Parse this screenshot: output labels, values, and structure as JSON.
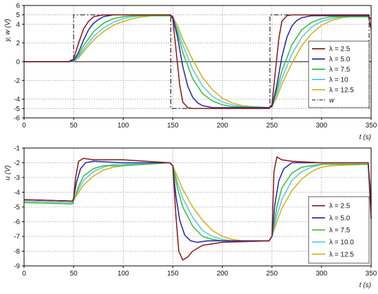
{
  "chart_data": [
    {
      "type": "line",
      "ylabel": "y, w (V)",
      "xlabel": "t (s)",
      "xlim": [
        0,
        350
      ],
      "ylim": [
        -6,
        6
      ],
      "xticks": [
        "0",
        "50",
        "100",
        "150",
        "200",
        "250",
        "300",
        "350"
      ],
      "yticks": [
        "-6",
        "-5",
        "-4",
        "-2",
        "0",
        "2",
        "4",
        "5",
        "6"
      ],
      "grid": true,
      "legend_position": "right",
      "reference": {
        "name": "w",
        "style": "dash-dot",
        "color": "#222222",
        "x": [
          0,
          50,
          50,
          148,
          148,
          248,
          248,
          348,
          348
        ],
        "y": [
          0,
          0,
          5,
          5,
          -5,
          -5,
          5,
          5,
          -5
        ]
      },
      "series": [
        {
          "name": "λ = 2.5",
          "color": "#8B2020",
          "x": [
            0,
            45,
            50,
            55,
            60,
            65,
            70,
            80,
            100,
            147,
            150,
            153,
            157,
            160,
            165,
            170,
            200,
            247,
            250,
            253,
            257,
            260,
            265,
            270,
            300,
            347,
            350
          ],
          "y": [
            0,
            0,
            0.3,
            2.0,
            3.5,
            4.3,
            4.8,
            5.0,
            5.0,
            5.0,
            4.6,
            1.5,
            -2.5,
            -4.3,
            -4.9,
            -5.0,
            -5.0,
            -5.0,
            -4.6,
            -1.5,
            2.5,
            4.3,
            4.9,
            5.0,
            5.0,
            5.0,
            3.5
          ]
        },
        {
          "name": "λ = 5.0",
          "color": "#2B2BA8",
          "x": [
            0,
            45,
            50,
            55,
            60,
            65,
            70,
            75,
            80,
            90,
            147,
            150,
            155,
            160,
            165,
            170,
            175,
            180,
            190,
            247,
            250,
            255,
            260,
            265,
            270,
            275,
            280,
            290,
            347,
            350
          ],
          "y": [
            0,
            0,
            0.1,
            1.0,
            2.3,
            3.4,
            4.1,
            4.5,
            4.8,
            5.0,
            5.0,
            4.8,
            2.5,
            -0.5,
            -2.6,
            -3.8,
            -4.4,
            -4.7,
            -4.9,
            -4.9,
            -4.8,
            -2.5,
            0.5,
            2.6,
            3.8,
            4.4,
            4.7,
            4.9,
            4.9,
            4.5
          ]
        },
        {
          "name": "λ = 7.5",
          "color": "#3DBF3D",
          "x": [
            0,
            45,
            50,
            55,
            60,
            70,
            80,
            90,
            100,
            110,
            147,
            150,
            155,
            160,
            170,
            180,
            190,
            200,
            210,
            247,
            250,
            255,
            260,
            270,
            280,
            290,
            300,
            310,
            347,
            350
          ],
          "y": [
            0,
            0,
            0.1,
            0.7,
            1.7,
            3.2,
            4.1,
            4.6,
            4.8,
            4.9,
            4.9,
            4.8,
            3.0,
            1.0,
            -1.8,
            -3.4,
            -4.2,
            -4.6,
            -4.8,
            -4.9,
            -4.8,
            -3.0,
            -1.0,
            1.8,
            3.4,
            4.2,
            4.6,
            4.8,
            4.8,
            4.6
          ]
        },
        {
          "name": "λ = 10",
          "color": "#5EC8EB",
          "x": [
            0,
            45,
            50,
            55,
            60,
            70,
            80,
            90,
            100,
            110,
            120,
            147,
            150,
            155,
            160,
            170,
            180,
            190,
            200,
            210,
            220,
            247,
            250,
            255,
            260,
            270,
            280,
            290,
            300,
            310,
            320,
            347,
            350
          ],
          "y": [
            0,
            0,
            0,
            0.5,
            1.3,
            2.7,
            3.6,
            4.2,
            4.6,
            4.8,
            4.9,
            4.9,
            4.8,
            3.4,
            1.8,
            -0.8,
            -2.6,
            -3.7,
            -4.3,
            -4.6,
            -4.8,
            -4.9,
            -4.8,
            -3.4,
            -1.8,
            0.8,
            2.6,
            3.7,
            4.3,
            4.6,
            4.8,
            4.8,
            4.6
          ]
        },
        {
          "name": "λ = 12.5",
          "color": "#D4B21A",
          "x": [
            0,
            45,
            50,
            55,
            60,
            70,
            80,
            90,
            100,
            110,
            120,
            130,
            147,
            150,
            155,
            160,
            170,
            180,
            190,
            200,
            210,
            220,
            230,
            247,
            250,
            255,
            260,
            270,
            280,
            290,
            300,
            310,
            320,
            330,
            347,
            350
          ],
          "y": [
            0,
            0,
            0,
            0.4,
            1.1,
            2.3,
            3.2,
            3.9,
            4.3,
            4.6,
            4.8,
            4.9,
            4.9,
            4.8,
            3.8,
            2.4,
            0.2,
            -1.7,
            -3.0,
            -3.9,
            -4.4,
            -4.7,
            -4.8,
            -4.9,
            -4.8,
            -3.8,
            -2.4,
            -0.2,
            1.7,
            3.0,
            3.9,
            4.4,
            4.7,
            4.8,
            4.8,
            4.6
          ]
        }
      ]
    },
    {
      "type": "line",
      "ylabel": "u (V)",
      "xlabel": "t (s)",
      "xlim": [
        0,
        350
      ],
      "ylim": [
        -9,
        -1
      ],
      "xticks": [
        "0",
        "50",
        "100",
        "150",
        "200",
        "250",
        "300",
        "350"
      ],
      "yticks": [
        "-9",
        "-8",
        "-7",
        "-6",
        "-5",
        "-4",
        "-3",
        "-2",
        "-1"
      ],
      "grid": true,
      "legend_position": "right",
      "series": [
        {
          "name": "λ = 2.5",
          "color": "#8B2020",
          "x": [
            0,
            49,
            50,
            52,
            55,
            60,
            70,
            100,
            147,
            150,
            153,
            156,
            160,
            165,
            170,
            180,
            200,
            247,
            250,
            252,
            255,
            260,
            270,
            300,
            347,
            350
          ],
          "y": [
            -4.5,
            -4.6,
            -4.4,
            -3.0,
            -1.9,
            -1.7,
            -1.8,
            -1.8,
            -2.0,
            -2.2,
            -5.5,
            -8.0,
            -8.6,
            -8.4,
            -8.0,
            -7.6,
            -7.4,
            -7.3,
            -7.0,
            -2.6,
            -1.6,
            -1.8,
            -1.9,
            -2.0,
            -2.0,
            -5.8
          ]
        },
        {
          "name": "λ = 5.0",
          "color": "#2B2BA8",
          "x": [
            0,
            49,
            50,
            53,
            57,
            62,
            70,
            100,
            147,
            150,
            153,
            157,
            162,
            168,
            175,
            185,
            200,
            247,
            250,
            253,
            257,
            262,
            270,
            300,
            347,
            350
          ],
          "y": [
            -4.5,
            -4.6,
            -4.4,
            -3.3,
            -2.4,
            -2.0,
            -1.9,
            -2.0,
            -2.0,
            -2.2,
            -4.2,
            -5.9,
            -6.9,
            -7.3,
            -7.4,
            -7.3,
            -7.3,
            -7.3,
            -7.0,
            -4.8,
            -3.2,
            -2.4,
            -2.0,
            -2.0,
            -2.0,
            -4.8
          ]
        },
        {
          "name": "λ = 7.5",
          "color": "#3DBF3D",
          "x": [
            0,
            49,
            50,
            55,
            60,
            70,
            80,
            100,
            147,
            150,
            155,
            160,
            170,
            180,
            190,
            200,
            247,
            250,
            255,
            260,
            270,
            280,
            300,
            347,
            350
          ],
          "y": [
            -4.7,
            -4.8,
            -4.6,
            -3.6,
            -2.9,
            -2.4,
            -2.2,
            -2.2,
            -2.0,
            -2.2,
            -3.8,
            -5.0,
            -6.3,
            -7.0,
            -7.2,
            -7.3,
            -7.3,
            -7.0,
            -5.0,
            -3.7,
            -2.7,
            -2.3,
            -2.1,
            -2.1,
            -4.6
          ]
        },
        {
          "name": "λ = 10.0",
          "color": "#5EC8EB",
          "x": [
            0,
            49,
            50,
            55,
            60,
            70,
            80,
            90,
            100,
            147,
            150,
            155,
            160,
            170,
            180,
            190,
            200,
            210,
            247,
            250,
            255,
            260,
            270,
            280,
            290,
            300,
            347,
            350
          ],
          "y": [
            -4.6,
            -4.7,
            -4.5,
            -3.8,
            -3.2,
            -2.6,
            -2.3,
            -2.1,
            -2.1,
            -2.0,
            -2.2,
            -3.4,
            -4.4,
            -5.7,
            -6.6,
            -7.0,
            -7.2,
            -7.3,
            -7.3,
            -7.0,
            -5.6,
            -4.5,
            -3.2,
            -2.6,
            -2.3,
            -2.1,
            -2.1,
            -4.4
          ]
        },
        {
          "name": "λ = 12.5",
          "color": "#D4B21A",
          "x": [
            0,
            49,
            50,
            55,
            60,
            70,
            80,
            90,
            100,
            110,
            147,
            150,
            155,
            160,
            170,
            180,
            190,
            200,
            210,
            220,
            247,
            250,
            255,
            260,
            270,
            280,
            290,
            300,
            310,
            347,
            350
          ],
          "y": [
            -4.6,
            -4.7,
            -4.5,
            -4.0,
            -3.5,
            -2.9,
            -2.5,
            -2.3,
            -2.2,
            -2.1,
            -2.0,
            -2.2,
            -3.0,
            -3.8,
            -5.0,
            -5.9,
            -6.6,
            -7.0,
            -7.2,
            -7.3,
            -7.3,
            -7.0,
            -6.0,
            -5.1,
            -3.9,
            -3.1,
            -2.6,
            -2.3,
            -2.2,
            -2.1,
            -4.2
          ]
        }
      ]
    }
  ]
}
